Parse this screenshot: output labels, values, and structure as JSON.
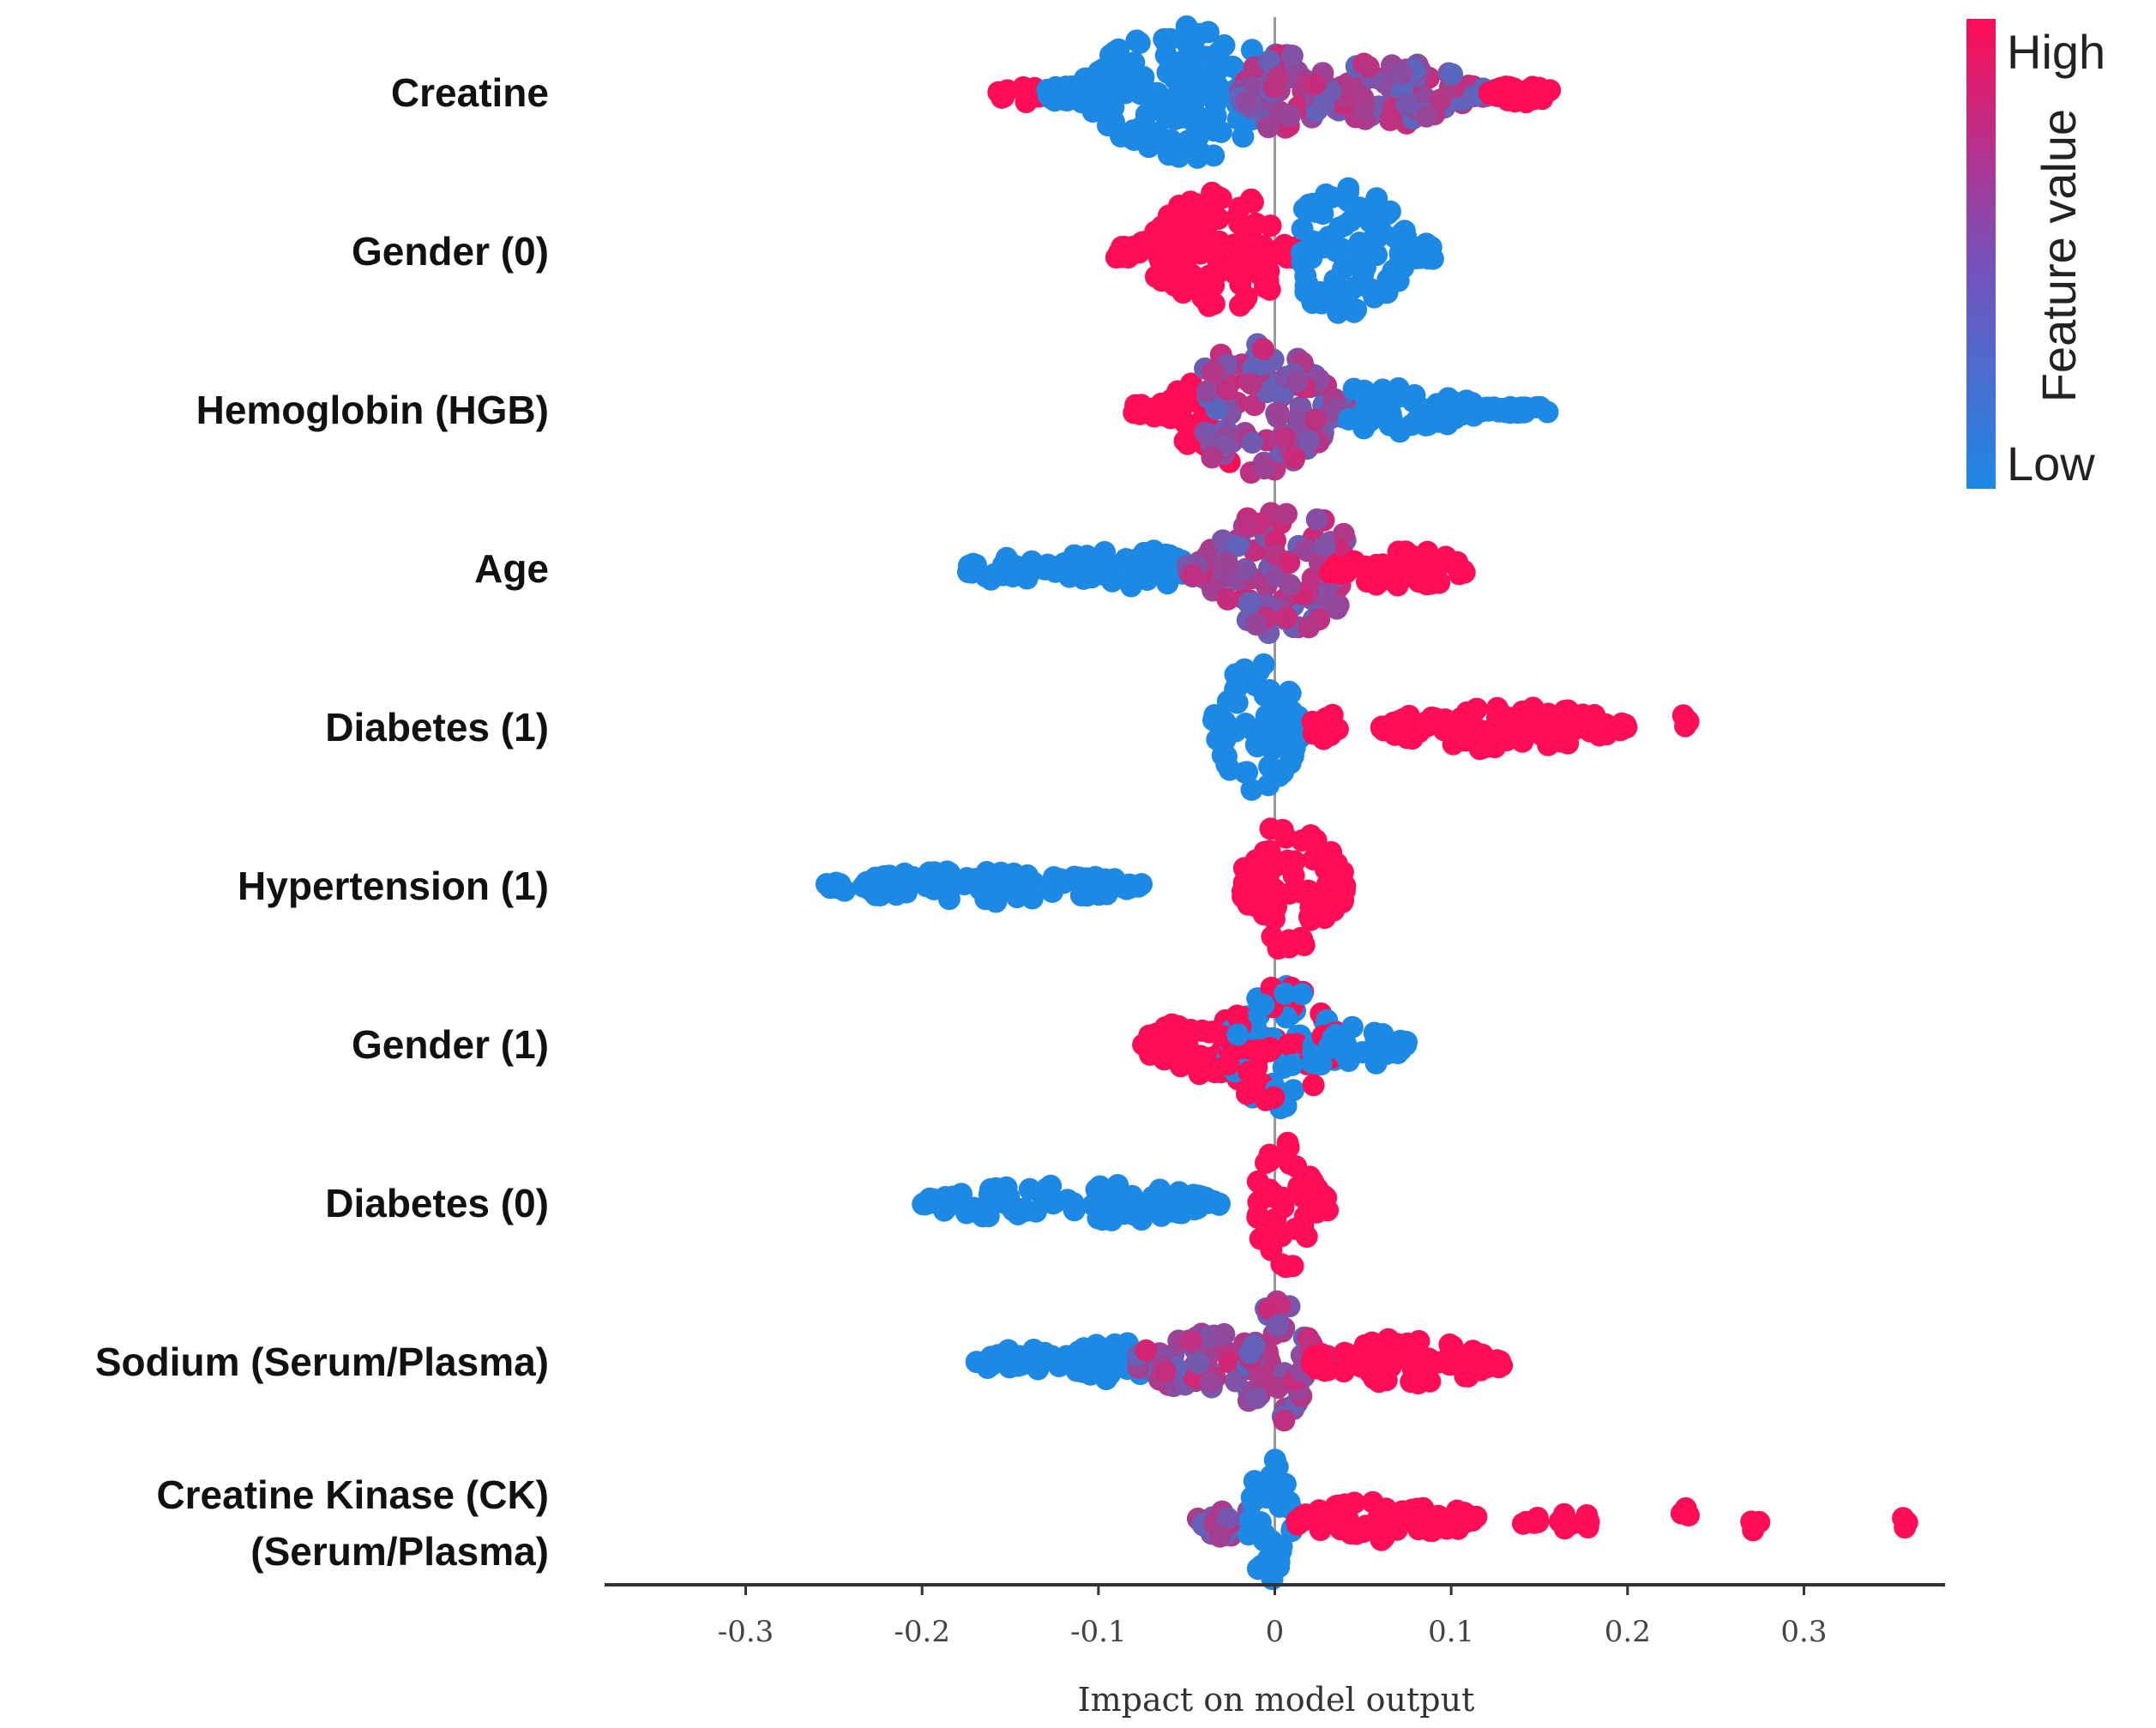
{
  "chart_data": {
    "type": "scatter",
    "subtype": "shap-beeswarm",
    "xlabel": "Impact on model output",
    "xlim": [
      -0.38,
      0.38
    ],
    "xticks": [
      -0.3,
      -0.2,
      -0.1,
      0,
      0.1,
      0.2,
      0.3
    ],
    "xtick_labels": [
      "-0.3",
      "-0.2",
      "-0.1",
      "0",
      "0.1",
      "0.2",
      "0.3"
    ],
    "zero_line": true,
    "colorbar": {
      "title": "Feature value",
      "high_label": "High",
      "low_label": "Low",
      "high_color": "#ff0d57",
      "low_color": "#1e88e5"
    },
    "features": [
      {
        "name": "Creatine",
        "segments": [
          {
            "min": -0.16,
            "max": -0.13,
            "width": 0.15,
            "color": "high"
          },
          {
            "min": -0.13,
            "max": -0.01,
            "width": 1.0,
            "color": "low",
            "peak": -0.05
          },
          {
            "min": -0.02,
            "max": 0.03,
            "width": 0.6,
            "color": "mix"
          },
          {
            "min": 0.02,
            "max": 0.13,
            "width": 0.5,
            "color": "mix",
            "peak": 0.06
          },
          {
            "min": 0.12,
            "max": 0.16,
            "width": 0.15,
            "color": "high"
          }
        ]
      },
      {
        "name": "Gender (0)",
        "segments": [
          {
            "min": -0.09,
            "max": 0.0,
            "width": 0.9,
            "color": "high",
            "peak": -0.03
          },
          {
            "min": 0.0,
            "max": 0.015,
            "width": 0.15,
            "color": "high"
          },
          {
            "min": 0.015,
            "max": 0.09,
            "width": 1.0,
            "color": "low",
            "peak": 0.04
          }
        ]
      },
      {
        "name": "Hemoglobin (HGB)",
        "segments": [
          {
            "min": -0.08,
            "max": -0.02,
            "width": 0.8,
            "color": "high",
            "peak": -0.03
          },
          {
            "min": -0.04,
            "max": 0.05,
            "width": 1.0,
            "color": "mix",
            "peak": -0.01
          },
          {
            "min": 0.04,
            "max": 0.155,
            "width": 0.35,
            "color": "low",
            "peak": 0.06
          }
        ]
      },
      {
        "name": "Age",
        "segments": [
          {
            "min": -0.175,
            "max": -0.13,
            "width": 0.2,
            "color": "low"
          },
          {
            "min": -0.13,
            "max": -0.04,
            "width": 0.3,
            "color": "low"
          },
          {
            "min": -0.05,
            "max": 0.04,
            "width": 1.0,
            "color": "mix",
            "peak": 0.005
          },
          {
            "min": 0.03,
            "max": 0.11,
            "width": 0.3,
            "color": "high"
          }
        ]
      },
      {
        "name": "Diabetes (1)",
        "segments": [
          {
            "min": -0.035,
            "max": 0.015,
            "width": 1.0,
            "color": "low",
            "peak": -0.01
          },
          {
            "min": 0.02,
            "max": 0.04,
            "width": 0.2,
            "color": "high"
          },
          {
            "min": 0.06,
            "max": 0.2,
            "width": 0.35,
            "color": "high"
          },
          {
            "min": 0.225,
            "max": 0.235,
            "width": 0.2,
            "color": "high"
          }
        ]
      },
      {
        "name": "Hypertension (1)",
        "segments": [
          {
            "min": -0.255,
            "max": -0.075,
            "width": 0.25,
            "color": "low"
          },
          {
            "min": -0.02,
            "max": 0.04,
            "width": 1.0,
            "color": "high",
            "peak": 0.01
          }
        ]
      },
      {
        "name": "Gender (1)",
        "segments": [
          {
            "min": -0.075,
            "max": 0.0,
            "width": 0.45,
            "color": "high"
          },
          {
            "min": -0.03,
            "max": 0.04,
            "width": 1.0,
            "color": "mixed-cluster",
            "peak": 0.0
          },
          {
            "min": 0.03,
            "max": 0.075,
            "width": 0.3,
            "color": "low"
          }
        ]
      },
      {
        "name": "Diabetes (0)",
        "segments": [
          {
            "min": -0.2,
            "max": -0.03,
            "width": 0.3,
            "color": "low"
          },
          {
            "min": -0.01,
            "max": 0.03,
            "width": 1.0,
            "color": "high",
            "peak": 0.005
          }
        ]
      },
      {
        "name": "Sodium (Serum/Plasma)",
        "segments": [
          {
            "min": -0.17,
            "max": -0.12,
            "width": 0.2,
            "color": "low"
          },
          {
            "min": -0.12,
            "max": -0.06,
            "width": 0.3,
            "color": "low"
          },
          {
            "min": -0.08,
            "max": 0.0,
            "width": 0.45,
            "color": "mix"
          },
          {
            "min": -0.015,
            "max": 0.03,
            "width": 1.0,
            "color": "mix",
            "peak": 0.0
          },
          {
            "min": 0.02,
            "max": 0.13,
            "width": 0.35,
            "color": "high"
          }
        ]
      },
      {
        "name": "Creatine Kinase (CK)\n(Serum/Plasma)",
        "segments": [
          {
            "min": -0.045,
            "max": -0.01,
            "width": 0.25,
            "color": "mix"
          },
          {
            "min": -0.015,
            "max": 0.01,
            "width": 1.0,
            "color": "low",
            "peak": -0.003
          },
          {
            "min": 0.01,
            "max": 0.115,
            "width": 0.3,
            "color": "high"
          },
          {
            "min": 0.14,
            "max": 0.15,
            "width": 0.2,
            "color": "high"
          },
          {
            "min": 0.16,
            "max": 0.18,
            "width": 0.2,
            "color": "high"
          },
          {
            "min": 0.23,
            "max": 0.235,
            "width": 0.2,
            "color": "high"
          },
          {
            "min": 0.27,
            "max": 0.275,
            "width": 0.2,
            "color": "high"
          },
          {
            "min": 0.355,
            "max": 0.36,
            "width": 0.2,
            "color": "high"
          }
        ]
      }
    ]
  }
}
